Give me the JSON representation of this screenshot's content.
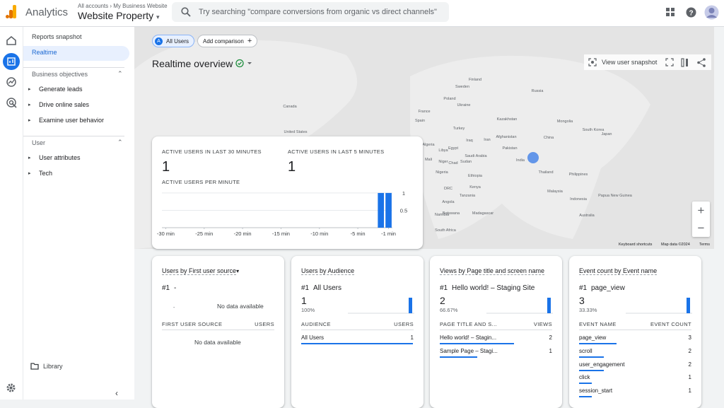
{
  "header": {
    "app": "Analytics",
    "breadcrumb_account": "All accounts",
    "breadcrumb_site": "My Business Website",
    "property": "Website Property",
    "search": "Try searching \"compare conversions from organic vs direct channels\""
  },
  "sidebar": {
    "items": [
      "Reports snapshot",
      "Realtime"
    ],
    "sections": [
      {
        "title": "Business objectives",
        "items": [
          "Generate leads",
          "Drive online sales",
          "Examine user behavior"
        ]
      },
      {
        "title": "User",
        "items": [
          "User attributes",
          "Tech"
        ]
      }
    ],
    "library": "Library"
  },
  "toolbar": {
    "chip_letter": "A",
    "chip": "All Users",
    "add_comparison": "Add comparison",
    "title": "Realtime overview",
    "view_snapshot": "View user snapshot"
  },
  "map": {
    "labels": [
      "Canada",
      "United States",
      "Russia",
      "Kazakhstan",
      "Mongolia",
      "China",
      "Japan",
      "South Korea",
      "Turkey",
      "Iran",
      "Iraq",
      "Afghanistan",
      "Pakistan",
      "India",
      "Saudi Arabia",
      "Egypt",
      "Libya",
      "Algeria",
      "Mali",
      "Niger",
      "Chad",
      "Sudan",
      "Nigeria",
      "Ethiopia",
      "Kenya",
      "DRC",
      "Tanzania",
      "Angola",
      "Namibia",
      "Botswana",
      "South Africa",
      "Madagascar",
      "Thailand",
      "Philippines",
      "Malaysia",
      "Indonesia",
      "Papua New Guinea",
      "Australia",
      "Spain",
      "France",
      "Poland",
      "Ukraine",
      "Sweden",
      "Finland"
    ],
    "footer": [
      "Keyboard shortcuts",
      "Map data ©2024",
      "Terms"
    ]
  },
  "overview": {
    "stats": [
      {
        "label": "ACTIVE USERS IN LAST 30 MINUTES",
        "value": 1
      },
      {
        "label": "ACTIVE USERS IN LAST 5 MINUTES",
        "value": 1
      }
    ],
    "per_minute": {
      "title": "ACTIVE USERS PER MINUTE",
      "x": [
        -30,
        -29,
        -28,
        -27,
        -26,
        -25,
        -24,
        -23,
        -22,
        -21,
        -20,
        -19,
        -18,
        -17,
        -16,
        -15,
        -14,
        -13,
        -12,
        -11,
        -10,
        -9,
        -8,
        -7,
        -6,
        -5,
        -4,
        -3,
        -2,
        -1
      ],
      "values": [
        0,
        0,
        0,
        0,
        0,
        0,
        0,
        0,
        0,
        0,
        0,
        0,
        0,
        0,
        0,
        0,
        0,
        0,
        0,
        0,
        0,
        0,
        0,
        0,
        0,
        0,
        0,
        0,
        1,
        1
      ],
      "color": "#1a73e8",
      "ylim": [
        0,
        1.1
      ],
      "yticks": [
        0.5,
        1
      ],
      "xticks": [
        {
          "value": -30,
          "label": "-30 min"
        },
        {
          "value": -25,
          "label": "-25 min"
        },
        {
          "value": -20,
          "label": "-20 min"
        },
        {
          "value": -15,
          "label": "-15 min"
        },
        {
          "value": -10,
          "label": "-10 min"
        },
        {
          "value": -5,
          "label": "-5 min"
        },
        {
          "value": -1,
          "label": "-1 min"
        }
      ]
    }
  },
  "cards": [
    {
      "metric": "Users",
      "dimension": "by First user source",
      "rank": "#1",
      "top": "-",
      "empty_top": "No data available",
      "mini": "-",
      "columns": [
        "FIRST USER SOURCE",
        "USERS"
      ],
      "empty_table": "No data available",
      "rows": []
    },
    {
      "metric": "Users",
      "dimension": "by Audience",
      "rank": "#1",
      "top": "All Users",
      "top_value": 1,
      "share": "100%",
      "columns": [
        "AUDIENCE",
        "USERS"
      ],
      "rows": [
        {
          "label": "All Users",
          "value": 1
        }
      ]
    },
    {
      "metric": "Views",
      "dimension": "by Page title and screen name",
      "rank": "#1",
      "top": "Hello world! – Staging Site",
      "top_value": 2,
      "share": "66.67%",
      "columns": [
        "PAGE TITLE AND S...",
        "VIEWS"
      ],
      "rows": [
        {
          "label": "Hello world! – Stagin...",
          "value": 2
        },
        {
          "label": "Sample Page – Stagi...",
          "value": 1
        }
      ]
    },
    {
      "metric": "Event count",
      "dimension": "by Event name",
      "rank": "#1",
      "top": "page_view",
      "top_value": 3,
      "share": "33.33%",
      "columns": [
        "EVENT NAME",
        "EVENT COUNT"
      ],
      "rows": [
        {
          "label": "page_view",
          "value": 3
        },
        {
          "label": "scroll",
          "value": 2
        },
        {
          "label": "user_engagement",
          "value": 2
        },
        {
          "label": "click",
          "value": 1
        },
        {
          "label": "session_start",
          "value": 1
        }
      ]
    }
  ]
}
